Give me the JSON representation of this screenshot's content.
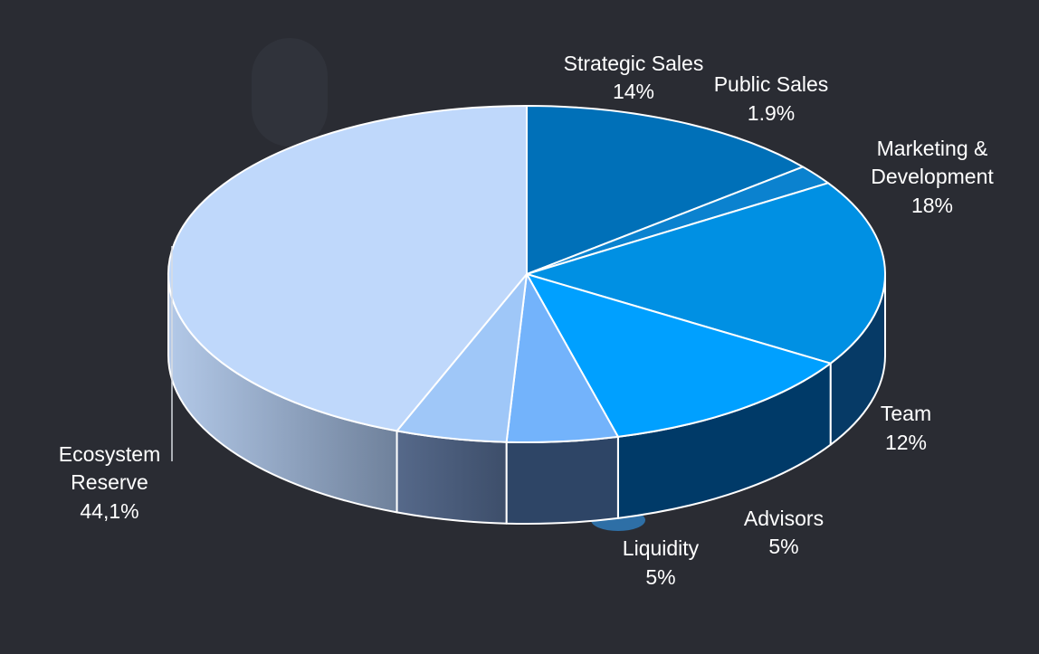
{
  "chart_data": {
    "type": "pie",
    "style": "3d",
    "title": "",
    "legend": "none",
    "slices": [
      {
        "name": "Strategic Sales",
        "label": "14%",
        "value": 14,
        "color": "#0070b8",
        "side_color": "#0a3f6b"
      },
      {
        "name": "Public Sales",
        "label": "1.9%",
        "value": 1.9,
        "color": "#0b82cf",
        "side_color": "#0b4a7a"
      },
      {
        "name": "Marketing & Development",
        "label": "18%",
        "value": 18,
        "color": "#0090e3",
        "side_color": "#063a66"
      },
      {
        "name": "Team",
        "label": "12%",
        "value": 12,
        "color": "#00a0ff",
        "side_color": "#003a68"
      },
      {
        "name": "Advisors",
        "label": "5%",
        "value": 5,
        "color": "#73b3fb",
        "side_color": "#2e4566"
      },
      {
        "name": "Liquidity",
        "label": "5%",
        "value": 5,
        "color": "#9fc7f8",
        "side_color": "#4e6282"
      },
      {
        "name": "Ecosystem Reserve",
        "label": "44,1%",
        "value": 44.1,
        "color": "#bfd8fb",
        "side_color": "#8ea5c4"
      }
    ]
  }
}
